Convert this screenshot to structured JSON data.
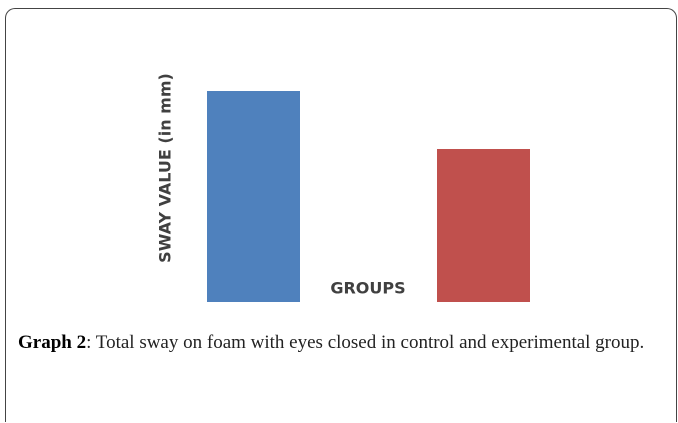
{
  "chart_data": {
    "type": "bar",
    "categories": [
      null,
      null
    ],
    "values": [
      211,
      153
    ],
    "colors": [
      "#4f81bd",
      "#c0504d"
    ],
    "ylabel": "SWAY VALUE (in mm)",
    "xlabel": "GROUPS"
  },
  "caption": {
    "label": "Graph 2",
    "text": ": Total sway on foam with eyes closed in control and experimental group."
  }
}
